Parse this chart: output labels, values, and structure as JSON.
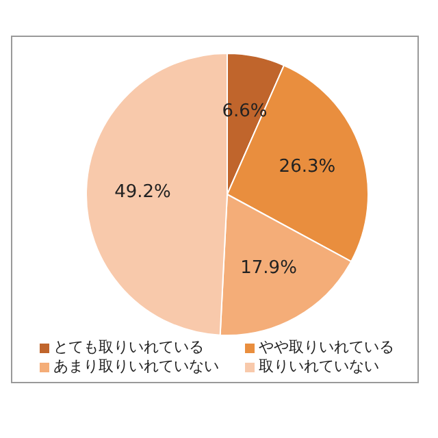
{
  "chart_data": {
    "type": "pie",
    "categories": [
      "とても取りいれている",
      "やや取りいれている",
      "あまり取りいれていない",
      "取りいれていない"
    ],
    "values": [
      6.6,
      26.3,
      17.9,
      49.2
    ],
    "colors": [
      "#c0652c",
      "#e98e3e",
      "#f4ad78",
      "#f8c9ab"
    ],
    "value_labels": [
      "6.6%",
      "26.3%",
      "17.9%",
      "49.2%"
    ],
    "legend": "bottom"
  }
}
